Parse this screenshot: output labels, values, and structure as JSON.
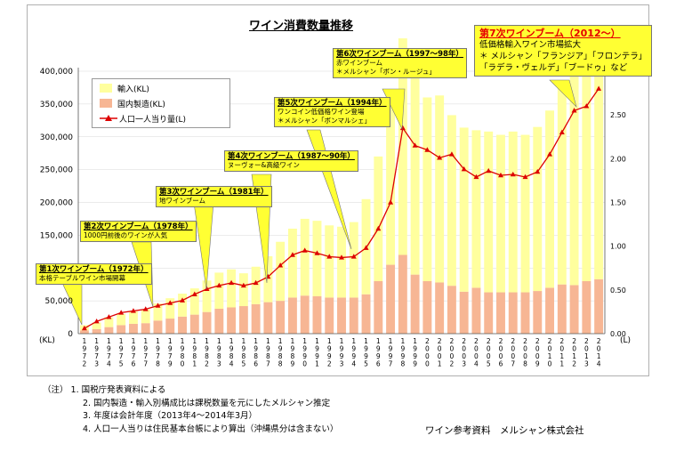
{
  "chart_data": {
    "type": "bar",
    "title": "ワイン消費数量推移",
    "y_left_unit": "(KL)",
    "y_right_unit": "(L)",
    "ylim_left": [
      0,
      400000
    ],
    "ylim_right": [
      0,
      3.0
    ],
    "left_ticks": [
      "0",
      "50,000",
      "100,000",
      "150,000",
      "200,000",
      "250,000",
      "300,000",
      "350,000",
      "400,000"
    ],
    "right_ticks": [
      "0.00",
      "0.50",
      "1.00",
      "1.50",
      "2.00",
      "2.50"
    ],
    "years": [
      "1972",
      "1973",
      "1974",
      "1975",
      "1976",
      "1977",
      "1978",
      "1979",
      "1980",
      "1981",
      "1982",
      "1983",
      "1984",
      "1985",
      "1986",
      "1987",
      "1988",
      "1989",
      "1990",
      "1991",
      "1992",
      "1993",
      "1994",
      "1995",
      "1996",
      "1997",
      "1998",
      "1999",
      "2000",
      "2001",
      "2002",
      "2003",
      "2004",
      "2005",
      "2006",
      "2007",
      "2008",
      "2009",
      "2010",
      "2011",
      "2012",
      "2013",
      "2014"
    ],
    "legend_position": "top-left",
    "series": [
      {
        "name": "輸入(KL)",
        "color": "#ffff9e",
        "values": [
          8000,
          10000,
          15000,
          17000,
          19000,
          21000,
          26000,
          31000,
          35000,
          40000,
          48000,
          55000,
          58000,
          50000,
          57000,
          70000,
          90000,
          105000,
          117000,
          115000,
          110000,
          108000,
          115000,
          145000,
          190000,
          245000,
          330000,
          300000,
          280000,
          285000,
          260000,
          250000,
          240000,
          245000,
          240000,
          245000,
          240000,
          250000,
          270000,
          300000,
          320000,
          340000,
          350000
        ]
      },
      {
        "name": "国内製造(KL)",
        "color": "#f7b694",
        "values": [
          5000,
          7000,
          10000,
          13000,
          15000,
          16000,
          20000,
          23000,
          26000,
          29000,
          33000,
          38000,
          40000,
          42000,
          45000,
          48000,
          50000,
          55000,
          58000,
          57000,
          55000,
          55000,
          55000,
          60000,
          80000,
          105000,
          120000,
          90000,
          80000,
          78000,
          73000,
          64000,
          70000,
          63000,
          63000,
          63000,
          63000,
          65000,
          70000,
          75000,
          74000,
          80000,
          83000
        ]
      },
      {
        "name": "人口一人当り量(L)",
        "color": "#dd0000",
        "axis": "right",
        "values": [
          0.06,
          0.14,
          0.19,
          0.24,
          0.26,
          0.28,
          0.32,
          0.35,
          0.38,
          0.45,
          0.51,
          0.55,
          0.58,
          0.55,
          0.58,
          0.65,
          0.78,
          0.9,
          0.95,
          0.92,
          0.88,
          0.87,
          0.88,
          0.98,
          1.2,
          1.5,
          2.35,
          2.15,
          2.1,
          2.01,
          2.05,
          1.88,
          1.79,
          1.86,
          1.81,
          1.82,
          1.79,
          1.85,
          2.05,
          2.3,
          2.55,
          2.6,
          2.8
        ]
      }
    ],
    "annotations": [
      {
        "title": "第1次ワインブーム（1972年）",
        "lines": [
          "本格テーブルワイン市場開幕"
        ]
      },
      {
        "title": "第2次ワインブーム（1978年）",
        "lines": [
          "1000円前後のワインが人気"
        ]
      },
      {
        "title": "第3次ワインブーム（1981年）",
        "lines": [
          "地ワインブーム"
        ]
      },
      {
        "title": "第4次ワインブーム（1987～90年）",
        "lines": [
          "ヌーヴォー&高級ワイン"
        ]
      },
      {
        "title": "第5次ワインブーム（1994年）",
        "lines": [
          "ワンコイン低価格ワイン登場",
          "＊メルシャン「ボンマルシェ」"
        ]
      },
      {
        "title": "第6次ワインブーム（1997～98年）",
        "lines": [
          "赤ワインブーム",
          "＊メルシャン「ボン・ルージュ」"
        ]
      },
      {
        "title": "第7次ワインブーム（2012～）",
        "lines": [
          "低価格輸入ワイン市場拡大",
          "＊ メルシャン「フランジア」「フロンテラ」",
          "「ラデラ・ヴェルデ」「ブードゥ」など"
        ]
      }
    ]
  },
  "notes": [
    "（注） 1. 国税庁発表資料による",
    "2. 国内製造・輸入別構成比は課税数量を元にしたメルシャン推定",
    "3. 年度は会計年度（2013年4～2014年3月）",
    "4. 人口一人当りは住民基本台帳により算出（沖縄県分は含まない）"
  ],
  "source": "ワイン参考資料　メルシャン株式会社"
}
